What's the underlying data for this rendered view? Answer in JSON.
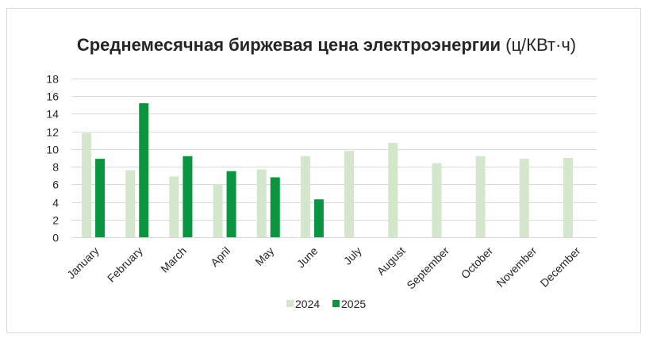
{
  "chart_data": {
    "type": "bar",
    "title": "Среднемесячная биржевая цена электроэнергии",
    "title_unit": "(ц/КВт·ч)",
    "categories": [
      "January",
      "February",
      "March",
      "April",
      "May",
      "June",
      "July",
      "August",
      "September",
      "October",
      "November",
      "December"
    ],
    "series": [
      {
        "name": "2024",
        "color": "#d4e6cc",
        "values": [
          11.8,
          7.6,
          6.9,
          6.0,
          7.7,
          9.2,
          9.8,
          10.7,
          8.4,
          9.2,
          8.9,
          9.0
        ]
      },
      {
        "name": "2025",
        "color": "#0a9640",
        "values": [
          8.9,
          15.2,
          9.2,
          7.5,
          6.8,
          4.3,
          null,
          null,
          null,
          null,
          null,
          null
        ]
      }
    ],
    "ylim": [
      0,
      18
    ],
    "yticks": [
      0,
      2,
      4,
      6,
      8,
      10,
      12,
      14,
      16,
      18
    ],
    "grid": true,
    "gridColor": "#d9d9d9",
    "legend": "bottom",
    "xlabel": "",
    "ylabel": ""
  }
}
